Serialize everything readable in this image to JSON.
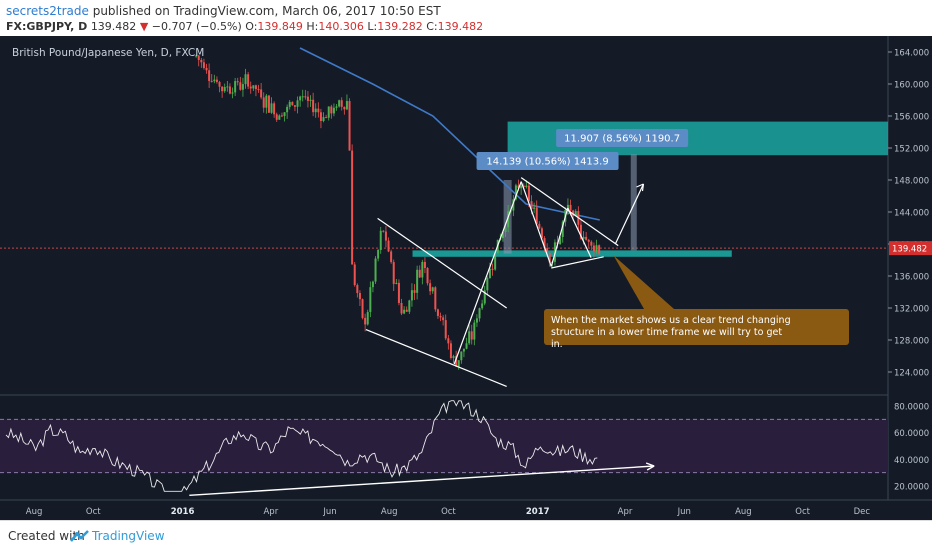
{
  "header": {
    "author": "secrets2trade",
    "published": "published on TradingView.com, March 06, 2017 10:50 EST",
    "symbol": "FX:GBPJPY, D",
    "last": "139.482",
    "change": "−0.707 (−0.5%)",
    "o_label": "O:",
    "o": "139.849",
    "h_label": "H:",
    "h": "140.306",
    "l_label": "L:",
    "l": "139.282",
    "c_label": "C:",
    "c": "139.482"
  },
  "footer": {
    "created_with": "Created with",
    "brand": "TradingView"
  },
  "colors": {
    "background": "#141b26",
    "up": "#4caf50",
    "down": "#ef5350",
    "ma": "#3f79c8",
    "teal": "#1aa6a1",
    "rsi": "#ffffff",
    "rsi_band": "#2b1f3f",
    "label_box": "#5b8cc6",
    "note_box": "#8a5a12"
  },
  "chart_data": [
    {
      "type": "candlestick",
      "title": "British Pound/Japanese Yen, D, FXCM",
      "x_ticks": [
        "Aug",
        "Oct",
        "2016",
        "Apr",
        "Jun",
        "Aug",
        "Oct",
        "2017",
        "Apr",
        "Jun",
        "Aug",
        "Oct",
        "Dec"
      ],
      "y_ticks": [
        "164.000",
        "160.000",
        "156.000",
        "152.000",
        "148.000",
        "144.000",
        "140.000",
        "136.000",
        "132.000",
        "128.000",
        "124.000"
      ],
      "ylim": [
        121.5,
        165.5
      ],
      "last_price_label": "139.482",
      "price_path": [
        {
          "x": "2016-01-15",
          "y": 163.5
        },
        {
          "x": "2016-02-10",
          "y": 159.5
        },
        {
          "x": "2016-03-10",
          "y": 160.2
        },
        {
          "x": "2016-04-10",
          "y": 156.0
        },
        {
          "x": "2016-05-01",
          "y": 158.5
        },
        {
          "x": "2016-05-25",
          "y": 156.0
        },
        {
          "x": "2016-06-20",
          "y": 158.0
        },
        {
          "x": "2016-06-24",
          "y": 136.5
        },
        {
          "x": "2016-07-06",
          "y": 129.5
        },
        {
          "x": "2016-07-25",
          "y": 142.0
        },
        {
          "x": "2016-08-15",
          "y": 131.0
        },
        {
          "x": "2016-09-05",
          "y": 138.0
        },
        {
          "x": "2016-10-07",
          "y": 125.0
        },
        {
          "x": "2016-10-25",
          "y": 128.5
        },
        {
          "x": "2016-11-20",
          "y": 140.0
        },
        {
          "x": "2016-12-15",
          "y": 147.8
        },
        {
          "x": "2017-01-16",
          "y": 138.0
        },
        {
          "x": "2017-02-01",
          "y": 144.5
        },
        {
          "x": "2017-02-20",
          "y": 140.5
        },
        {
          "x": "2017-03-06",
          "y": 139.5
        }
      ],
      "moving_average": [
        {
          "x": "2016-05-01",
          "y": 164.5
        },
        {
          "x": "2016-07-15",
          "y": 160.0
        },
        {
          "x": "2016-09-15",
          "y": 156.0
        },
        {
          "x": "2016-11-15",
          "y": 149.0
        },
        {
          "x": "2016-12-20",
          "y": 145.0
        },
        {
          "x": "2017-03-06",
          "y": 143.0
        }
      ],
      "annotations": {
        "measure_left": "14.139 (10.56%) 1413.9",
        "measure_right": "11.907 (8.56%) 1190.7",
        "note": "When the market shows us a clear trend changing structure in a lower time frame we will try to get in."
      }
    },
    {
      "type": "line",
      "title": "",
      "y_ticks": [
        "80.0000",
        "60.0000",
        "40.0000",
        "20.0000"
      ],
      "ylim": [
        14,
        86
      ],
      "levels": [
        70,
        30
      ],
      "series": [
        {
          "values": [
            60,
            55,
            48,
            62,
            58,
            45,
            50,
            40,
            35,
            30,
            22,
            12,
            15,
            28,
            40,
            55,
            60,
            50,
            48,
            62,
            58,
            55,
            50,
            38,
            44,
            40,
            30,
            35,
            45,
            70,
            85,
            80,
            72,
            55,
            50,
            35,
            52,
            45,
            48,
            42,
            40
          ]
        }
      ]
    }
  ]
}
